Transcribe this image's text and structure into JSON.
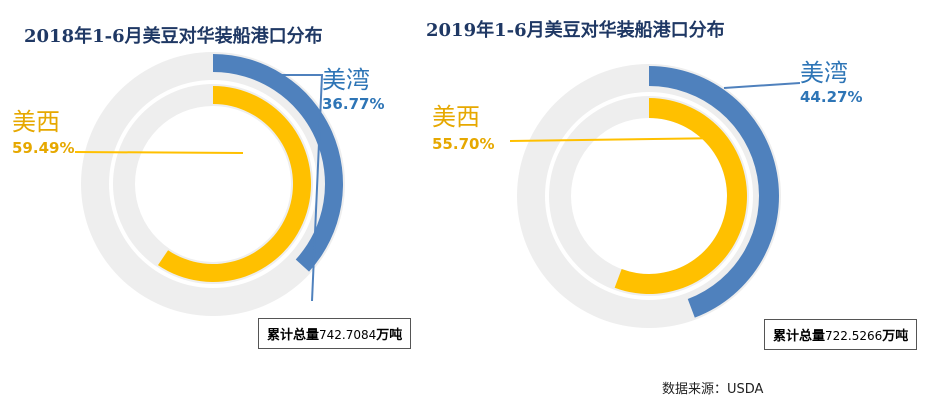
{
  "colors": {
    "east_gulf": "#4f81bd",
    "west": "#ffc000",
    "track": "#eeeeee",
    "title": "#1f3864",
    "pct_blue": "#2e75b6",
    "pct_gold": "#e6a800"
  },
  "chart_data": [
    {
      "type": "pie",
      "title": "2018年1-6月美豆对华装船港口分布",
      "series": [
        {
          "name": "美湾",
          "value": 36.77,
          "label": "36.77%"
        },
        {
          "name": "美西",
          "value": 59.49,
          "label": "59.49%"
        }
      ],
      "total": {
        "prefix": "累计总量",
        "number": "742.7084",
        "unit": "万吨"
      }
    },
    {
      "type": "pie",
      "title": "2019年1-6月美豆对华装船港口分布",
      "series": [
        {
          "name": "美湾",
          "value": 44.27,
          "label": "44.27%"
        },
        {
          "name": "美西",
          "value": 55.7,
          "label": "55.70%"
        }
      ],
      "total": {
        "prefix": "累计总量",
        "number": "722.5266",
        "unit": "万吨"
      }
    }
  ],
  "source": "数据来源：USDA"
}
